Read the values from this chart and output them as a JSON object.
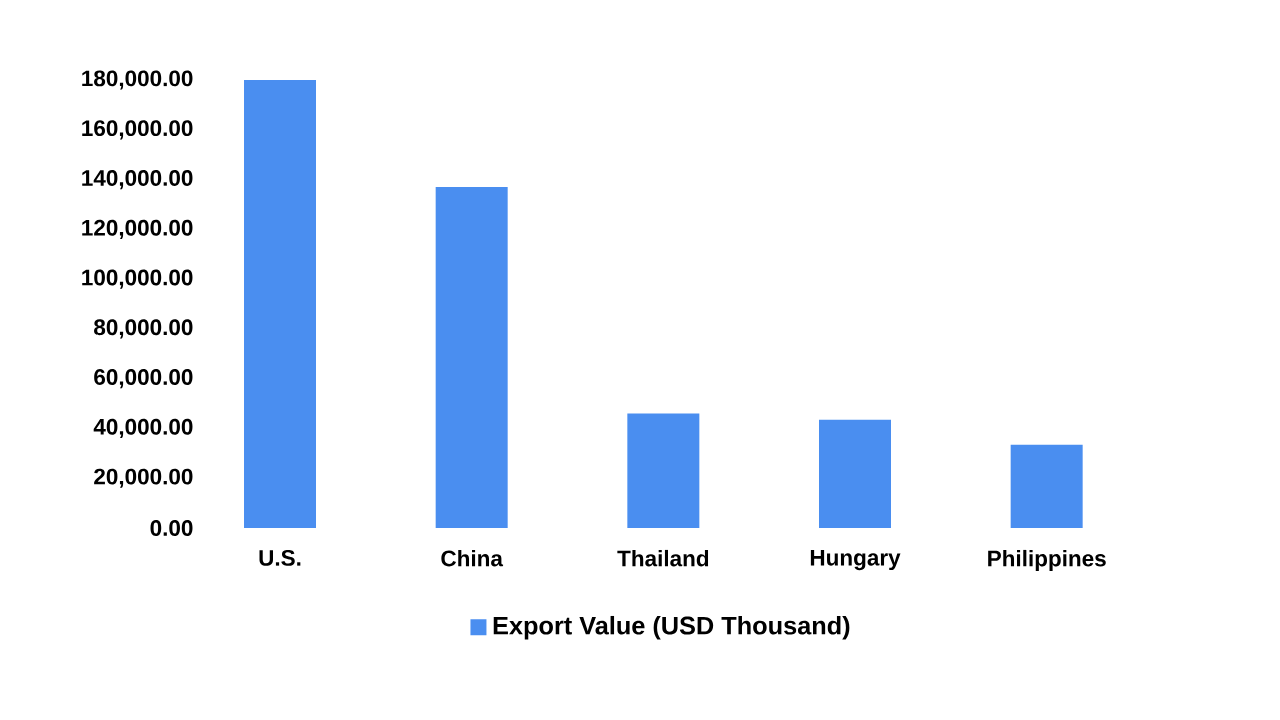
{
  "chart_data": {
    "type": "bar",
    "categories": [
      "U.S.",
      "China",
      "Thailand",
      "Hungary",
      "Philippines"
    ],
    "series": [
      {
        "name": "Export Value (USD Thousand)",
        "color": "#4a8ef0",
        "values": [
          180000,
          137000,
          46000,
          43500,
          33500
        ]
      }
    ],
    "ylim": [
      0,
      180000
    ],
    "yticks": [
      {
        "value": 0,
        "label": "0.00"
      },
      {
        "value": 20000,
        "label": "20,000.00"
      },
      {
        "value": 40000,
        "label": "40,000.00"
      },
      {
        "value": 60000,
        "label": "60,000.00"
      },
      {
        "value": 80000,
        "label": "80,000.00"
      },
      {
        "value": 100000,
        "label": "100,000.00"
      },
      {
        "value": 120000,
        "label": "120,000.00"
      },
      {
        "value": 140000,
        "label": "140,000.00"
      },
      {
        "value": 160000,
        "label": "160,000.00"
      },
      {
        "value": 180000,
        "label": "180,000.00"
      }
    ],
    "grid": false,
    "legend": "bottom"
  }
}
